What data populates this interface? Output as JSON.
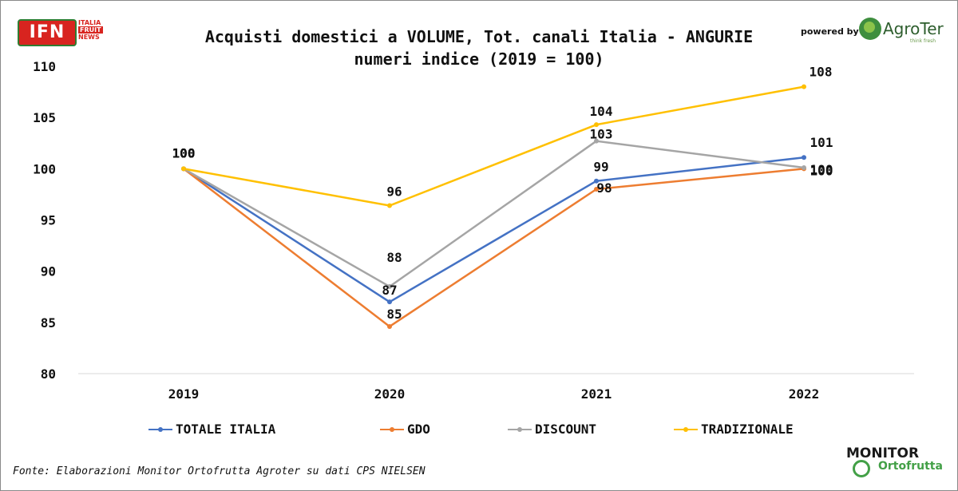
{
  "header": {
    "title_line1": "Acquisti domestici a VOLUME, Tot. canali Italia - ANGURIE",
    "title_line2": "numeri indice (2019 = 100)",
    "ifn_logo": "IFN",
    "ifn_side": [
      "ITALIA",
      "FRUIT",
      "NEWS"
    ],
    "powered_by": "powered by",
    "agroter_logo": "AgroTer",
    "agroter_tagline": "think fresh"
  },
  "footer": {
    "source": "Fonte: Elaborazioni Monitor Ortofrutta Agroter su dati CPS NIELSEN",
    "monitor_top": "MONITOR",
    "monitor_bottom": "Ortofrutta"
  },
  "chart_data": {
    "type": "line",
    "title": "Acquisti domestici a VOLUME, Tot. canali Italia - ANGURIE",
    "subtitle": "numeri indice (2019 = 100)",
    "categories": [
      "2019",
      "2020",
      "2021",
      "2022"
    ],
    "ylim": [
      80,
      110
    ],
    "yticks": [
      80,
      85,
      90,
      95,
      100,
      105,
      110
    ],
    "grid": false,
    "legend_position": "bottom",
    "series": [
      {
        "name": "TOTALE ITALIA",
        "color": "#4472c4",
        "values": [
          100,
          87,
          98.8,
          101.1
        ],
        "labels": [
          "100",
          "87",
          "99",
          "101"
        ]
      },
      {
        "name": "GDO",
        "color": "#ed7d31",
        "values": [
          100,
          84.6,
          98,
          100
        ],
        "labels": [
          "100",
          "85",
          "98",
          "100"
        ]
      },
      {
        "name": "DISCOUNT",
        "color": "#a5a5a5",
        "values": [
          100,
          88.5,
          102.7,
          100.1
        ],
        "labels": [
          "100",
          "88",
          "103",
          "100"
        ]
      },
      {
        "name": "TRADIZIONALE",
        "color": "#ffc000",
        "values": [
          100,
          96.4,
          104.3,
          108
        ],
        "labels": [
          "100",
          "96",
          "104",
          "108"
        ]
      }
    ]
  }
}
